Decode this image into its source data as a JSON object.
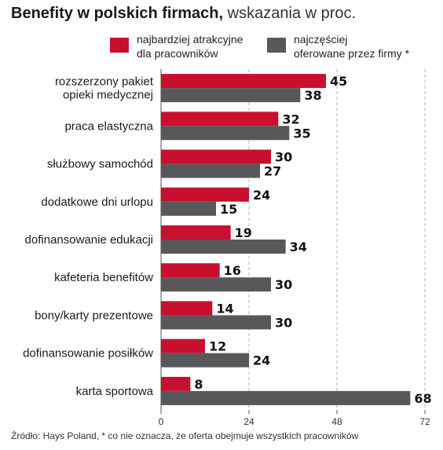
{
  "title": {
    "bold": "Benefity w  polskich firmach,",
    "light": " wskazania w proc."
  },
  "colors": {
    "series_a": "#c8102e",
    "series_b": "#58585a",
    "grid": "#b5b5b5"
  },
  "legend": [
    {
      "line1": "najbardziej atrakcyjne",
      "line2": "dla pracowników"
    },
    {
      "line1": "najczęściej",
      "line2": "oferowane przez  firmy *"
    }
  ],
  "source": "Źródło: Hays Poland, * co nie oznacza, że oferta obejmuje wszystkich pracowników",
  "chart_data": {
    "type": "bar",
    "orientation": "horizontal",
    "categories": [
      [
        "rozszerzony pakiet",
        "opieki medycznej"
      ],
      [
        "praca elastyczna"
      ],
      [
        "służbowy samochód"
      ],
      [
        "dodatkowe dni urlopu"
      ],
      [
        "dofinansowanie edukacji"
      ],
      [
        "kafeteria benefitów"
      ],
      [
        "bony/karty prezentowe"
      ],
      [
        "dofinansowanie posiłków"
      ],
      [
        "karta sportowa"
      ]
    ],
    "series": [
      {
        "name": "najbardziej atrakcyjne dla pracowników",
        "values": [
          45,
          32,
          30,
          24,
          19,
          16,
          14,
          12,
          8
        ]
      },
      {
        "name": "najczęściej oferowane przez  firmy *",
        "values": [
          38,
          35,
          27,
          15,
          34,
          30,
          30,
          24,
          68
        ]
      }
    ],
    "xlim": [
      0,
      72
    ],
    "xticks": [
      0,
      24,
      48,
      72
    ],
    "grid": true,
    "legend_position": "top"
  }
}
